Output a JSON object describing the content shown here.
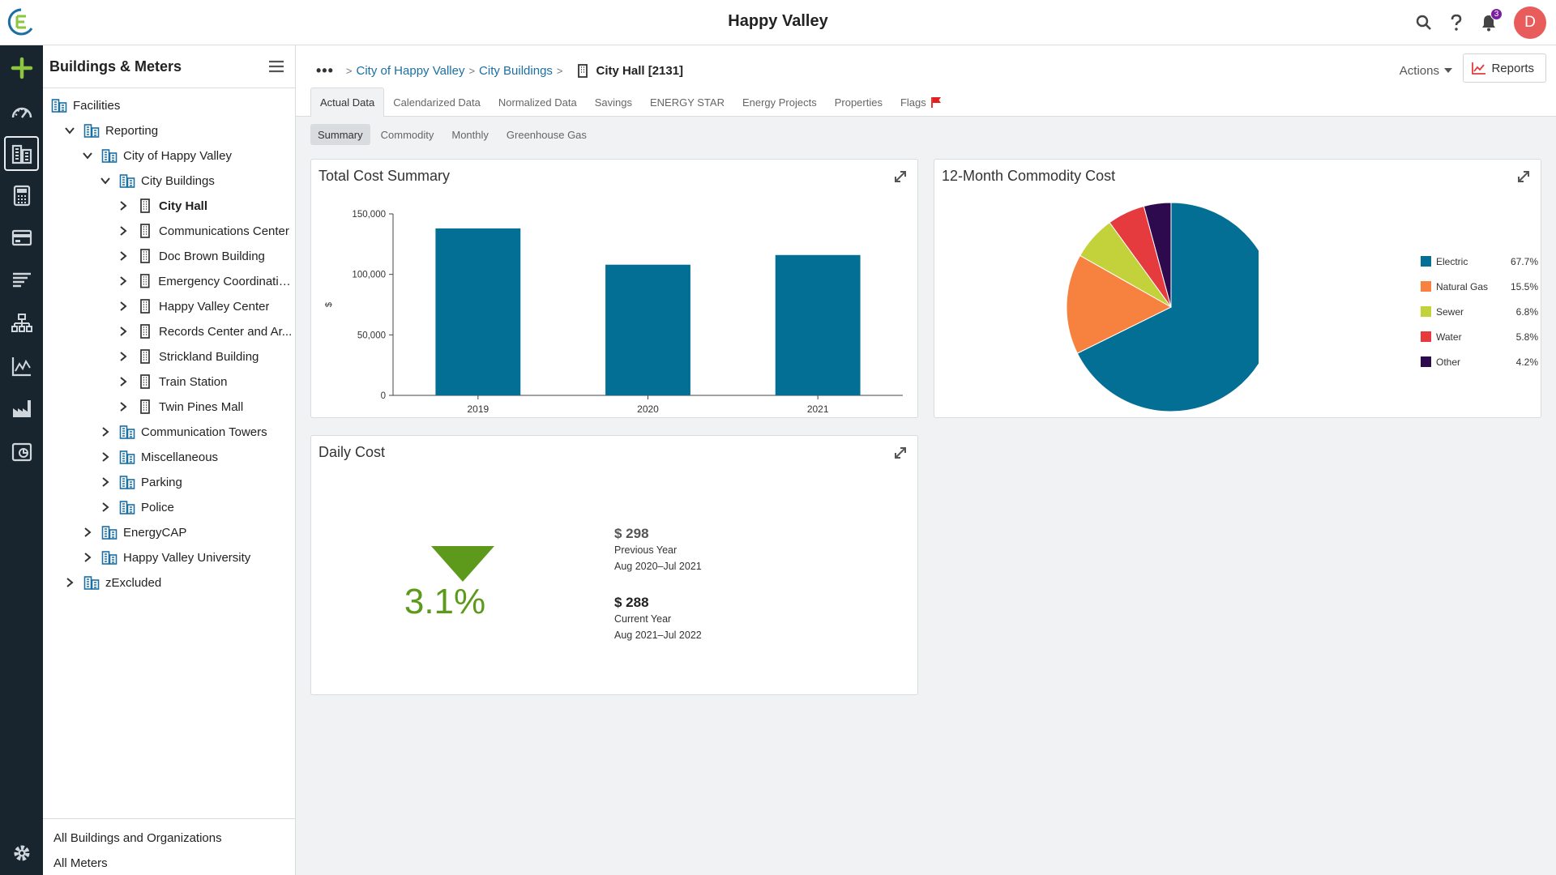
{
  "header": {
    "title": "Happy Valley",
    "notification_count": "3",
    "avatar_initial": "D",
    "icons": [
      "search-icon",
      "help-icon",
      "bell-icon"
    ]
  },
  "rail": {
    "items": [
      "add-icon",
      "dashboard-icon",
      "buildings-icon",
      "bills-icon",
      "accounts-icon",
      "reports-list-icon",
      "hierarchy-icon",
      "charts-icon",
      "industry-icon",
      "map-icon",
      "settings-icon"
    ],
    "active": "buildings-icon",
    "colors": {
      "add": "#8cc63f",
      "icon": "#cfd6dc"
    }
  },
  "tree_panel": {
    "title": "Buildings & Meters",
    "nodes": [
      {
        "label": "Facilities",
        "level": 0,
        "type": "org",
        "chevron": "none"
      },
      {
        "label": "Reporting",
        "level": 1,
        "type": "org",
        "chevron": "down"
      },
      {
        "label": "City of Happy Valley",
        "level": 2,
        "type": "org",
        "chevron": "down"
      },
      {
        "label": "City Buildings",
        "level": 3,
        "type": "org",
        "chevron": "down"
      },
      {
        "label": "City Hall",
        "level": 4,
        "type": "building",
        "chevron": "right",
        "bold": true
      },
      {
        "label": "Communications Center",
        "level": 4,
        "type": "building",
        "chevron": "right"
      },
      {
        "label": "Doc Brown Building",
        "level": 4,
        "type": "building",
        "chevron": "right"
      },
      {
        "label": "Emergency Coordinatio...",
        "level": 4,
        "type": "building",
        "chevron": "right"
      },
      {
        "label": "Happy Valley Center",
        "level": 4,
        "type": "building",
        "chevron": "right"
      },
      {
        "label": "Records Center and Ar...",
        "level": 4,
        "type": "building",
        "chevron": "right"
      },
      {
        "label": "Strickland Building",
        "level": 4,
        "type": "building",
        "chevron": "right"
      },
      {
        "label": "Train Station",
        "level": 4,
        "type": "building",
        "chevron": "right"
      },
      {
        "label": "Twin Pines Mall",
        "level": 4,
        "type": "building",
        "chevron": "right"
      },
      {
        "label": "Communication Towers",
        "level": 3,
        "type": "org",
        "chevron": "right"
      },
      {
        "label": "Miscellaneous",
        "level": 3,
        "type": "org",
        "chevron": "right"
      },
      {
        "label": "Parking",
        "level": 3,
        "type": "org",
        "chevron": "right"
      },
      {
        "label": "Police",
        "level": 3,
        "type": "org",
        "chevron": "right"
      },
      {
        "label": "EnergyCAP",
        "level": 2,
        "type": "org",
        "chevron": "right"
      },
      {
        "label": "Happy Valley University",
        "level": 2,
        "type": "org",
        "chevron": "right"
      },
      {
        "label": "zExcluded",
        "level": 1,
        "type": "org",
        "chevron": "right"
      }
    ],
    "footer": [
      "All Buildings and Organizations",
      "All Meters"
    ]
  },
  "breadcrumb": {
    "items": [
      "City of Happy Valley",
      "City Buildings"
    ],
    "current": "City Hall [2131]"
  },
  "toolbar": {
    "actions_label": "Actions",
    "reports_label": "Reports"
  },
  "tabs": [
    {
      "label": "Actual Data",
      "active": true
    },
    {
      "label": "Calendarized Data"
    },
    {
      "label": "Normalized Data"
    },
    {
      "label": "Savings"
    },
    {
      "label": "ENERGY STAR"
    },
    {
      "label": "Energy Projects"
    },
    {
      "label": "Properties"
    },
    {
      "label": "Flags",
      "flag": true
    }
  ],
  "subtabs": [
    {
      "label": "Summary",
      "active": true
    },
    {
      "label": "Commodity"
    },
    {
      "label": "Monthly"
    },
    {
      "label": "Greenhouse Gas"
    }
  ],
  "chart_data": [
    {
      "type": "bar",
      "title": "Total Cost Summary",
      "categories": [
        "2019",
        "2020",
        "2021"
      ],
      "values": [
        138000,
        108000,
        116000
      ],
      "ylabel": "$",
      "ylim": [
        0,
        150000
      ],
      "yticks": [
        0,
        50000,
        100000,
        150000
      ],
      "ytick_labels": [
        "0",
        "50,000",
        "100,000",
        "150,000"
      ],
      "color": "#046f94",
      "grid": false
    },
    {
      "type": "pie",
      "title": "12-Month Commodity Cost",
      "legend_position": "right",
      "slices": [
        {
          "name": "Electric",
          "value": 67.7,
          "label": "67.7%",
          "color": "#046f94"
        },
        {
          "name": "Natural Gas",
          "value": 15.5,
          "label": "15.5%",
          "color": "#f7813e"
        },
        {
          "name": "Sewer",
          "value": 6.8,
          "label": "6.8%",
          "color": "#c3d13a"
        },
        {
          "name": "Water",
          "value": 5.8,
          "label": "5.8%",
          "color": "#e53a3e"
        },
        {
          "name": "Other",
          "value": 4.2,
          "label": "4.2%",
          "color": "#2d0a4e"
        }
      ]
    }
  ],
  "daily_cost": {
    "title": "Daily Cost",
    "percent": "3.1%",
    "arrow_color": "#5d9a1c",
    "previous": {
      "value": "$ 298",
      "label": "Previous Year",
      "range": "Aug 2020–Jul 2021"
    },
    "current": {
      "value": "$ 288",
      "label": "Current Year",
      "range": "Aug 2021–Jul 2022"
    }
  }
}
